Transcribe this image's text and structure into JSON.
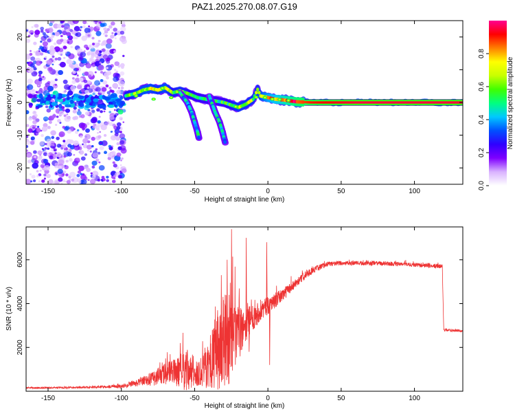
{
  "title": "PAZ1.2025.270.08.07.G19",
  "chart_data": [
    {
      "type": "heatmap",
      "xlabel": "Height of straight line (km)",
      "ylabel": "Frequency (Hz)",
      "xlim": [
        -165,
        133
      ],
      "ylim": [
        -25,
        25
      ],
      "xticks": [
        -150,
        -100,
        -50,
        0,
        50,
        100
      ],
      "yticks": [
        -20,
        -10,
        0,
        10,
        20
      ],
      "colorbar": {
        "label": "Normalized spectral amplitude",
        "range": [
          0,
          1
        ],
        "ticks": [
          0.0,
          0.2,
          0.4,
          0.6,
          0.8
        ],
        "tick_labels": [
          "0.0",
          "0.2",
          "0.4",
          "0.6",
          "0.8"
        ],
        "colormap": [
          "#ffffff",
          "#d9b3ff",
          "#7f00ff",
          "#3000ff",
          "#0050ff",
          "#00c8ff",
          "#00ff80",
          "#40ff00",
          "#c8ff00",
          "#ffff00",
          "#ff8000",
          "#ff0000",
          "#ff0090"
        ]
      },
      "main_ridge": [
        {
          "x": -97,
          "f": 2.0,
          "a": 0.45
        },
        {
          "x": -90,
          "f": 2.8,
          "a": 0.5
        },
        {
          "x": -85,
          "f": 3.8,
          "a": 0.55
        },
        {
          "x": -80,
          "f": 4.3,
          "a": 0.55
        },
        {
          "x": -75,
          "f": 3.8,
          "a": 0.5
        },
        {
          "x": -70,
          "f": 4.5,
          "a": 0.55
        },
        {
          "x": -65,
          "f": 3.0,
          "a": 0.45
        },
        {
          "x": -60,
          "f": 3.5,
          "a": 0.5
        },
        {
          "x": -55,
          "f": 2.8,
          "a": 0.45
        },
        {
          "x": -48,
          "f": 1.5,
          "a": 0.4
        },
        {
          "x": -40,
          "f": 0.8,
          "a": 0.4
        },
        {
          "x": -30,
          "f": 0.0,
          "a": 0.4
        },
        {
          "x": -25,
          "f": -0.8,
          "a": 0.45
        },
        {
          "x": -20,
          "f": -1.5,
          "a": 0.5
        },
        {
          "x": -15,
          "f": -0.5,
          "a": 0.5
        },
        {
          "x": -10,
          "f": 1.0,
          "a": 0.5
        },
        {
          "x": -7,
          "f": 4.0,
          "a": 0.5
        },
        {
          "x": -5,
          "f": 2.0,
          "a": 0.55
        },
        {
          "x": 0,
          "f": 1.5,
          "a": 0.65
        },
        {
          "x": 5,
          "f": 1.0,
          "a": 0.7
        },
        {
          "x": 10,
          "f": 0.8,
          "a": 0.75
        },
        {
          "x": 15,
          "f": 0.5,
          "a": 0.8
        },
        {
          "x": 20,
          "f": 0.2,
          "a": 0.85
        },
        {
          "x": 30,
          "f": 0.0,
          "a": 0.9
        },
        {
          "x": 60,
          "f": 0.0,
          "a": 0.95
        },
        {
          "x": 133,
          "f": 0.0,
          "a": 0.95
        }
      ],
      "descending_branches": [
        [
          {
            "x": -60,
            "f": 3.0
          },
          {
            "x": -55,
            "f": 0.0
          },
          {
            "x": -52,
            "f": -3.0
          },
          {
            "x": -50,
            "f": -6.0
          },
          {
            "x": -48,
            "f": -9.0
          },
          {
            "x": -47,
            "f": -11.0
          }
        ],
        [
          {
            "x": -40,
            "f": 2.0
          },
          {
            "x": -38,
            "f": -0.5
          },
          {
            "x": -36,
            "f": -3.0
          },
          {
            "x": -33,
            "f": -6.0
          },
          {
            "x": -31,
            "f": -9.0
          },
          {
            "x": -29,
            "f": -12.5
          }
        ]
      ],
      "noise_region": {
        "x_range": [
          -165,
          -98
        ],
        "f_range": [
          -25,
          25
        ],
        "amplitude_range": [
          0.05,
          0.35
        ]
      }
    },
    {
      "type": "line",
      "xlabel": "Height of straight line (km)",
      "ylabel": "SNR (10 * v/v)",
      "xlim": [
        -165,
        133
      ],
      "ylim": [
        0,
        7500
      ],
      "xticks": [
        -150,
        -100,
        -50,
        0,
        50,
        100
      ],
      "yticks": [
        2000,
        4000,
        6000
      ],
      "color": "#ee3333",
      "profile": [
        {
          "x": -165,
          "y": 150,
          "noise": 40
        },
        {
          "x": -120,
          "y": 180,
          "noise": 50
        },
        {
          "x": -100,
          "y": 220,
          "noise": 80
        },
        {
          "x": -90,
          "y": 350,
          "noise": 150
        },
        {
          "x": -80,
          "y": 550,
          "noise": 300
        },
        {
          "x": -70,
          "y": 800,
          "noise": 500
        },
        {
          "x": -60,
          "y": 900,
          "noise": 700
        },
        {
          "x": -55,
          "y": 900,
          "noise": 1000
        },
        {
          "x": -50,
          "y": 700,
          "noise": 500
        },
        {
          "x": -45,
          "y": 1000,
          "noise": 800
        },
        {
          "x": -40,
          "y": 1200,
          "noise": 1100
        },
        {
          "x": -35,
          "y": 1800,
          "noise": 1800
        },
        {
          "x": -30,
          "y": 2200,
          "noise": 2300
        },
        {
          "x": -25,
          "y": 2400,
          "noise": 2000
        },
        {
          "x": -20,
          "y": 2600,
          "noise": 1200
        },
        {
          "x": -15,
          "y": 3000,
          "noise": 800
        },
        {
          "x": -10,
          "y": 3400,
          "noise": 600
        },
        {
          "x": -5,
          "y": 3700,
          "noise": 500
        },
        {
          "x": 0,
          "y": 3900,
          "noise": 400
        },
        {
          "x": 10,
          "y": 4400,
          "noise": 300
        },
        {
          "x": 20,
          "y": 5000,
          "noise": 200
        },
        {
          "x": 30,
          "y": 5500,
          "noise": 150
        },
        {
          "x": 40,
          "y": 5800,
          "noise": 120
        },
        {
          "x": 50,
          "y": 5850,
          "noise": 100
        },
        {
          "x": 80,
          "y": 5830,
          "noise": 100
        },
        {
          "x": 119,
          "y": 5700,
          "noise": 100
        },
        {
          "x": 120,
          "y": 2800,
          "noise": 60
        },
        {
          "x": 133,
          "y": 2750,
          "noise": 60
        }
      ],
      "spikes": [
        {
          "x": -32,
          "y": 5300
        },
        {
          "x": -28,
          "y": 6000
        },
        {
          "x": -25,
          "y": 7400
        },
        {
          "x": -15,
          "y": 7000
        },
        {
          "x": -13,
          "y": 1800
        },
        {
          "x": -1,
          "y": 6800
        },
        {
          "x": 1,
          "y": 1200
        },
        {
          "x": -60,
          "y": 2200
        },
        {
          "x": -70,
          "y": 1500
        }
      ]
    }
  ]
}
